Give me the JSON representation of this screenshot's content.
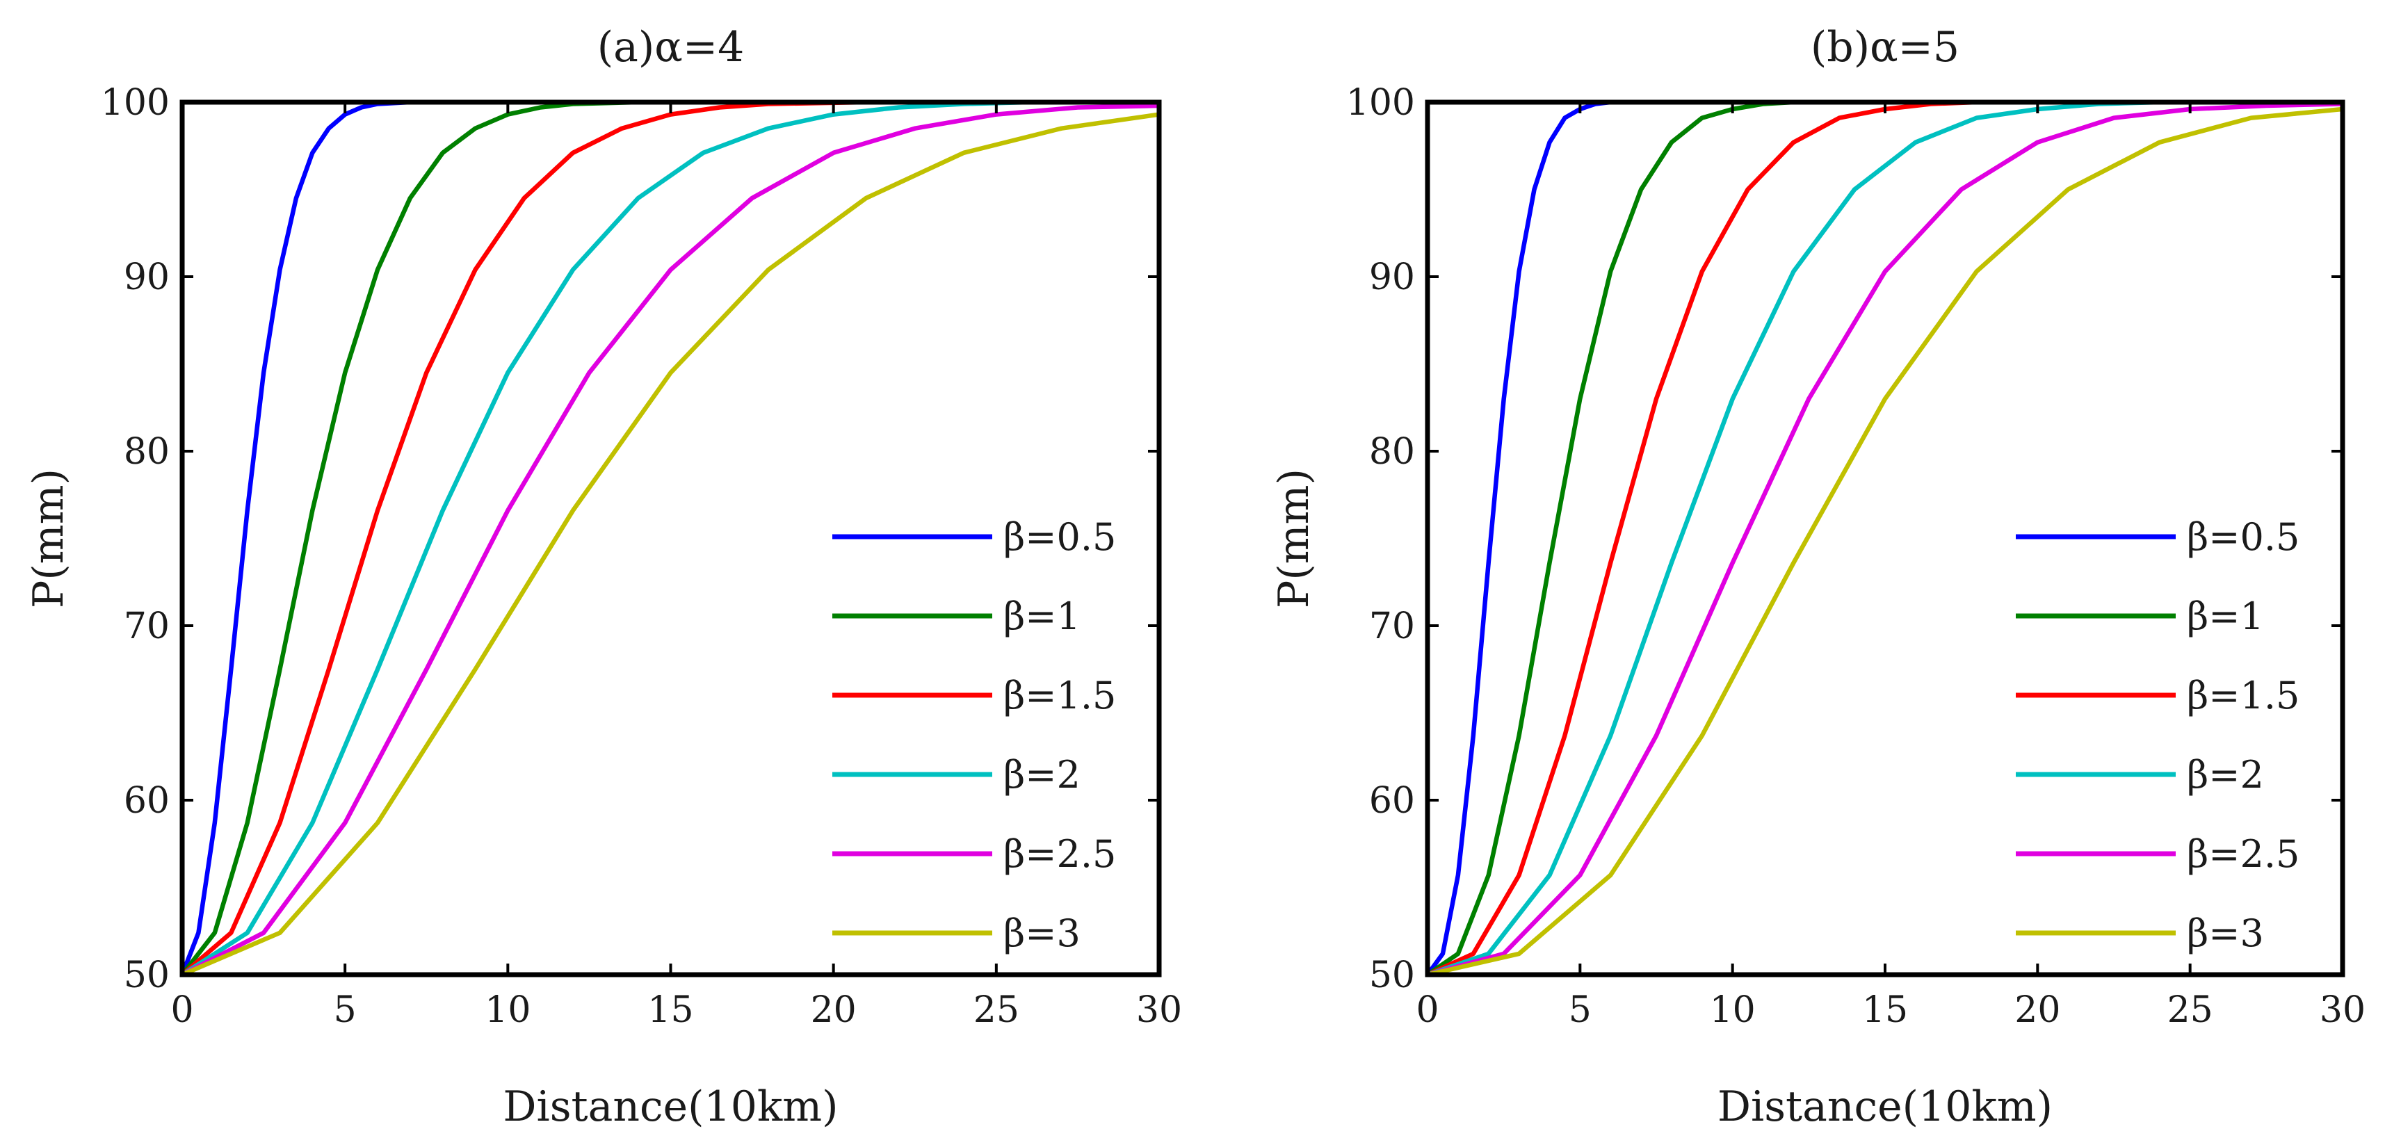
{
  "chart_data": [
    {
      "type": "line",
      "title": "(a)α=4",
      "xlabel": "Distance(10km)",
      "ylabel": "P(mm)",
      "xlim": [
        0,
        30
      ],
      "ylim": [
        50,
        100
      ],
      "xticks": [
        "0",
        "5",
        "10",
        "15",
        "20",
        "25",
        "30"
      ],
      "yticks": [
        "50",
        "60",
        "70",
        "80",
        "90",
        "100"
      ],
      "grid": false,
      "legend_position": "bottom-right",
      "series": [
        {
          "name": "β=0.5",
          "color": "#0000ff",
          "x": [
            0,
            0.5,
            1,
            1.5,
            2,
            2.5,
            3,
            3.5,
            4,
            4.5,
            5,
            5.5,
            6,
            7,
            8,
            10,
            30
          ],
          "y": [
            50,
            52.4,
            58.7,
            67.5,
            76.6,
            84.5,
            90.4,
            94.5,
            97.1,
            98.5,
            99.3,
            99.7,
            99.9,
            100,
            100,
            100,
            100
          ]
        },
        {
          "name": "β=1",
          "color": "#008000",
          "x": [
            0,
            1,
            2,
            3,
            4,
            5,
            6,
            7,
            8,
            9,
            10,
            11,
            12,
            14,
            16,
            30
          ],
          "y": [
            50,
            52.4,
            58.7,
            67.5,
            76.6,
            84.5,
            90.4,
            94.5,
            97.1,
            98.5,
            99.3,
            99.7,
            99.9,
            100,
            100,
            100
          ]
        },
        {
          "name": "β=1.5",
          "color": "#ff0000",
          "x": [
            0,
            1.5,
            3,
            4.5,
            6,
            7.5,
            9,
            10.5,
            12,
            13.5,
            15,
            16.5,
            18,
            21,
            24,
            30
          ],
          "y": [
            50,
            52.4,
            58.7,
            67.5,
            76.6,
            84.5,
            90.4,
            94.5,
            97.1,
            98.5,
            99.3,
            99.7,
            99.9,
            100,
            100,
            100
          ]
        },
        {
          "name": "β=2",
          "color": "#00c0c0",
          "x": [
            0,
            2,
            4,
            6,
            8,
            10,
            12,
            14,
            16,
            18,
            20,
            22,
            24,
            26,
            28,
            30
          ],
          "y": [
            50,
            52.4,
            58.7,
            67.5,
            76.6,
            84.5,
            90.4,
            94.5,
            97.1,
            98.5,
            99.3,
            99.7,
            99.9,
            100,
            100,
            100
          ]
        },
        {
          "name": "β=2.5",
          "color": "#e000e0",
          "x": [
            0,
            2.5,
            5,
            7.5,
            10,
            12.5,
            15,
            17.5,
            20,
            22.5,
            25,
            27.5,
            30
          ],
          "y": [
            50,
            52.4,
            58.7,
            67.5,
            76.6,
            84.5,
            90.4,
            94.5,
            97.1,
            98.5,
            99.3,
            99.7,
            99.8
          ]
        },
        {
          "name": "β=3",
          "color": "#c0c000",
          "x": [
            0,
            3,
            6,
            9,
            12,
            15,
            18,
            21,
            24,
            27,
            30
          ],
          "y": [
            50,
            52.4,
            58.7,
            67.5,
            76.6,
            84.5,
            90.4,
            94.5,
            97.1,
            98.5,
            99.3
          ]
        }
      ]
    },
    {
      "type": "line",
      "title": "(b)α=5",
      "xlabel": "Distance(10km)",
      "ylabel": "P(mm)",
      "xlim": [
        0,
        30
      ],
      "ylim": [
        50,
        100
      ],
      "xticks": [
        "0",
        "5",
        "10",
        "15",
        "20",
        "25",
        "30"
      ],
      "yticks": [
        "50",
        "60",
        "70",
        "80",
        "90",
        "100"
      ],
      "grid": false,
      "legend_position": "bottom-right",
      "series": [
        {
          "name": "β=0.5",
          "color": "#0000ff",
          "x": [
            0,
            0.5,
            1,
            1.5,
            2,
            2.5,
            3,
            3.5,
            4,
            4.5,
            5,
            5.5,
            6,
            7,
            8,
            10,
            30
          ],
          "y": [
            50,
            51.2,
            55.7,
            63.7,
            73.6,
            83.0,
            90.3,
            95.0,
            97.7,
            99.1,
            99.6,
            99.9,
            100,
            100,
            100,
            100,
            100
          ]
        },
        {
          "name": "β=1",
          "color": "#008000",
          "x": [
            0,
            1,
            2,
            3,
            4,
            5,
            6,
            7,
            8,
            9,
            10,
            11,
            12,
            14,
            16,
            30
          ],
          "y": [
            50,
            51.2,
            55.7,
            63.7,
            73.6,
            83.0,
            90.3,
            95.0,
            97.7,
            99.1,
            99.6,
            99.9,
            100,
            100,
            100,
            100
          ]
        },
        {
          "name": "β=1.5",
          "color": "#ff0000",
          "x": [
            0,
            1.5,
            3,
            4.5,
            6,
            7.5,
            9,
            10.5,
            12,
            13.5,
            15,
            16.5,
            18,
            21,
            24,
            30
          ],
          "y": [
            50,
            51.2,
            55.7,
            63.7,
            73.6,
            83.0,
            90.3,
            95.0,
            97.7,
            99.1,
            99.6,
            99.9,
            100,
            100,
            100,
            100
          ]
        },
        {
          "name": "β=2",
          "color": "#00c0c0",
          "x": [
            0,
            2,
            4,
            6,
            8,
            10,
            12,
            14,
            16,
            18,
            20,
            22,
            24,
            26,
            28,
            30
          ],
          "y": [
            50,
            51.2,
            55.7,
            63.7,
            73.6,
            83.0,
            90.3,
            95.0,
            97.7,
            99.1,
            99.6,
            99.9,
            100,
            100,
            100,
            100
          ]
        },
        {
          "name": "β=2.5",
          "color": "#e000e0",
          "x": [
            0,
            2.5,
            5,
            7.5,
            10,
            12.5,
            15,
            17.5,
            20,
            22.5,
            25,
            27.5,
            30
          ],
          "y": [
            50,
            51.2,
            55.7,
            63.7,
            73.6,
            83.0,
            90.3,
            95.0,
            97.7,
            99.1,
            99.6,
            99.8,
            99.9
          ]
        },
        {
          "name": "β=3",
          "color": "#c0c000",
          "x": [
            0,
            3,
            6,
            9,
            12,
            15,
            18,
            21,
            24,
            27,
            30
          ],
          "y": [
            50,
            51.2,
            55.7,
            63.7,
            73.6,
            83.0,
            90.3,
            95.0,
            97.7,
            99.1,
            99.6
          ]
        }
      ]
    }
  ]
}
